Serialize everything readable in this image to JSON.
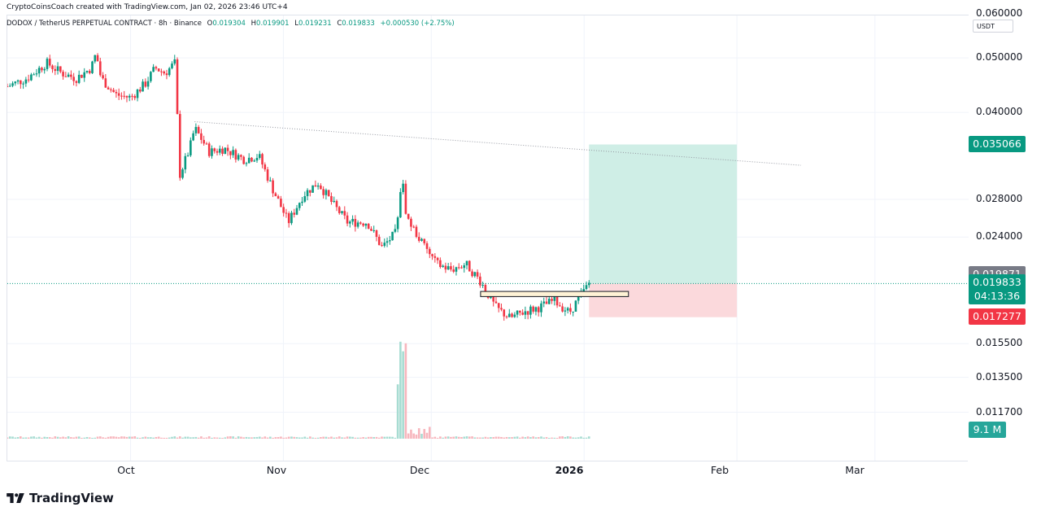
{
  "header": {
    "attribution": "CryptoCoinsCoach created with TradingView.com, Jan 02, 2026 23:46 UTC+4",
    "symbol": "DODOX / TetherUS PERPETUAL CONTRACT · 8h · Binance",
    "open_label": "O",
    "open": "0.019304",
    "high_label": "H",
    "high": "0.019901",
    "low_label": "L",
    "low": "0.019231",
    "close_label": "C",
    "close": "0.019833",
    "change": "+0.000530 (+2.75%)"
  },
  "price_axis": {
    "currency": "USDT",
    "scale": "log",
    "ticks": [
      "0.060000",
      "0.050000",
      "0.040000",
      "0.028000",
      "0.024000",
      "0.015500",
      "0.013500",
      "0.011700"
    ]
  },
  "price_tags": {
    "target": "0.035066",
    "last_high": "0.019871",
    "current": "0.019833",
    "countdown": "04:13:36",
    "stop": "0.017277",
    "volume": "9.1 M"
  },
  "time_axis": {
    "labels": [
      "Oct",
      "Nov",
      "Dec",
      "2026",
      "Feb",
      "Mar"
    ]
  },
  "colors": {
    "up": "#089981",
    "down": "#f23645",
    "target_zone": "#cfeee6",
    "stop_zone": "#fbd9dc",
    "tag_green": "#089981",
    "tag_red": "#f23645",
    "tag_gray": "#787b86",
    "volume_tag": "#26a69a",
    "trendline": "#9598a1"
  },
  "chart_data": {
    "type": "candlestick",
    "timeframe": "8h",
    "yscale": "log",
    "ylim": [
      0.0105,
      0.068
    ],
    "x_range": [
      "2025-09-06",
      "2026-03-20"
    ],
    "price_path": [
      [
        "2025-09-06",
        0.0445
      ],
      [
        "2025-09-10",
        0.046
      ],
      [
        "2025-09-14",
        0.049
      ],
      [
        "2025-09-17",
        0.047
      ],
      [
        "2025-09-20",
        0.046
      ],
      [
        "2025-09-23",
        0.048
      ],
      [
        "2025-09-24",
        0.051
      ],
      [
        "2025-09-25",
        0.046
      ],
      [
        "2025-09-28",
        0.043
      ],
      [
        "2025-10-01",
        0.0425
      ],
      [
        "2025-10-04",
        0.045
      ],
      [
        "2025-10-06",
        0.048
      ],
      [
        "2025-10-08",
        0.047
      ],
      [
        "2025-10-10",
        0.049
      ],
      [
        "2025-10-11",
        0.031
      ],
      [
        "2025-10-13",
        0.0345
      ],
      [
        "2025-10-14",
        0.0375
      ],
      [
        "2025-10-17",
        0.034
      ],
      [
        "2025-10-20",
        0.0345
      ],
      [
        "2025-10-24",
        0.033
      ],
      [
        "2025-10-27",
        0.0335
      ],
      [
        "2025-10-30",
        0.029
      ],
      [
        "2025-11-02",
        0.0255
      ],
      [
        "2025-11-05",
        0.0285
      ],
      [
        "2025-11-08",
        0.03
      ],
      [
        "2025-11-11",
        0.0275
      ],
      [
        "2025-11-14",
        0.0255
      ],
      [
        "2025-11-18",
        0.0255
      ],
      [
        "2025-11-21",
        0.023
      ],
      [
        "2025-11-24",
        0.0245
      ],
      [
        "2025-11-25",
        0.031
      ],
      [
        "2025-11-26",
        0.026
      ],
      [
        "2025-11-29",
        0.0235
      ],
      [
        "2025-12-02",
        0.0215
      ],
      [
        "2025-12-05",
        0.021
      ],
      [
        "2025-12-08",
        0.0215
      ],
      [
        "2025-12-11",
        0.02
      ],
      [
        "2025-12-14",
        0.018
      ],
      [
        "2025-12-17",
        0.0172
      ],
      [
        "2025-12-20",
        0.0177
      ],
      [
        "2025-12-23",
        0.018
      ],
      [
        "2025-12-26",
        0.0185
      ],
      [
        "2025-12-29",
        0.0176
      ],
      [
        "2026-01-02",
        0.019833
      ]
    ],
    "candle_count": 220,
    "trendline": {
      "from": [
        "2025-10-14",
        0.0385
      ],
      "to": [
        "2026-02-14",
        0.0322
      ]
    },
    "support_box": {
      "from": "2025-12-11",
      "to": "2026-01-10",
      "top": 0.0192,
      "bottom": 0.0188
    },
    "position": {
      "type": "long",
      "entry": 0.019833,
      "target": 0.035066,
      "stop": 0.017277,
      "from": "2026-01-02",
      "to": "2026-02-01"
    },
    "volume_spike_date": "2025-11-25"
  }
}
